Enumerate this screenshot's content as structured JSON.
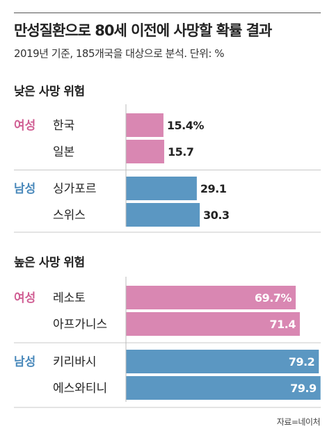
{
  "title": "만성질환으로 80세 이전에 사망할 확률 결과",
  "subtitle": "2019년 기준, 185개국을 대상으로 분석. 단위: %",
  "source": "자료=네이처",
  "colors": {
    "female": "#d987b2",
    "male": "#5b97c2",
    "female_label": "#d05e93",
    "male_label": "#4a89bb",
    "separator": "#c8c8c8"
  },
  "chart_data": [
    {
      "type": "bar",
      "title": "낮은 사망 위험",
      "xlim": [
        0,
        80
      ],
      "groups": [
        {
          "name": "여성",
          "categories": [
            "한국",
            "일본"
          ],
          "values": [
            15.4,
            15.7
          ],
          "labels": [
            "15.4%",
            "15.7"
          ]
        },
        {
          "name": "남성",
          "categories": [
            "싱가포르",
            "스위스"
          ],
          "values": [
            29.1,
            30.3
          ],
          "labels": [
            "29.1",
            "30.3"
          ]
        }
      ]
    },
    {
      "type": "bar",
      "title": "높은 사망 위험",
      "xlim": [
        0,
        80
      ],
      "groups": [
        {
          "name": "여성",
          "categories": [
            "레소토",
            "아프가니스"
          ],
          "values": [
            69.7,
            71.4
          ],
          "labels": [
            "69.7%",
            "71.4"
          ]
        },
        {
          "name": "남성",
          "categories": [
            "키리바시",
            "에스와티니"
          ],
          "values": [
            79.2,
            79.9
          ],
          "labels": [
            "79.2",
            "79.9"
          ]
        }
      ]
    }
  ]
}
